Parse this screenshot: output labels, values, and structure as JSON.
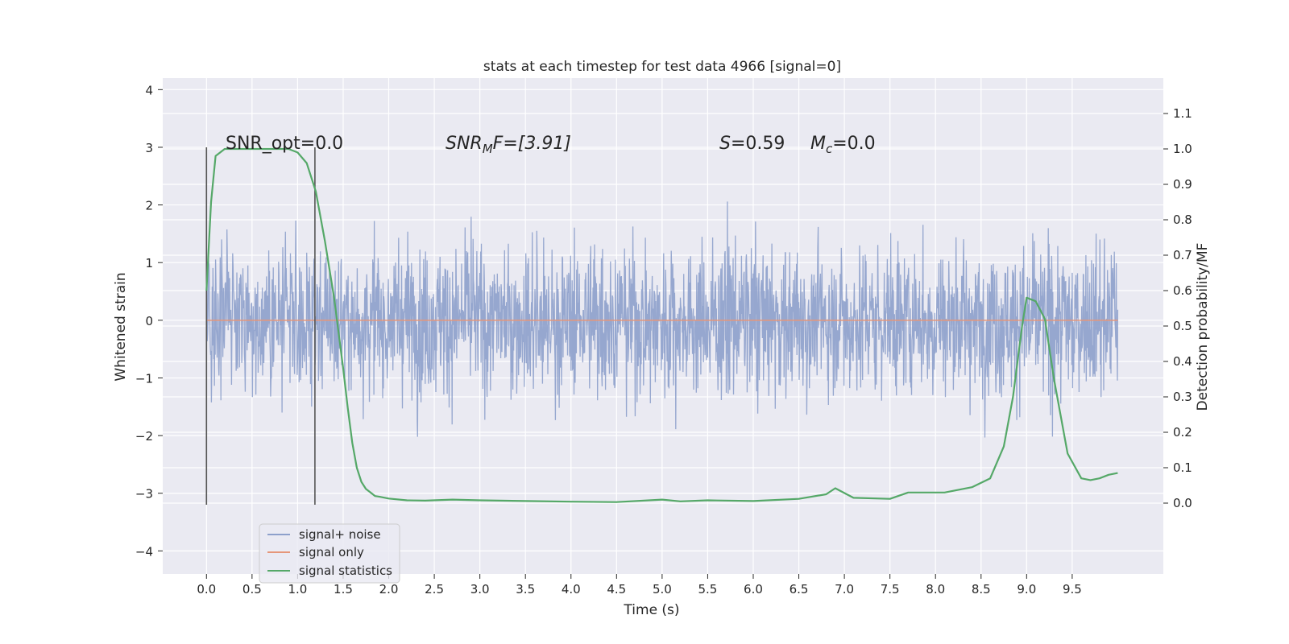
{
  "chart_data": {
    "type": "line",
    "title": "stats at each timestep for test data 4966 [signal=0]",
    "xlabel": "Time (s)",
    "ylabel": "Whitened strain",
    "y2label": "Detection probability/MF",
    "xlim": [
      -0.48,
      10.5
    ],
    "ylim": [
      -4.4,
      4.2
    ],
    "y2lim": [
      -0.2,
      1.2
    ],
    "x_ticks": [
      "0.0",
      "0.5",
      "1.0",
      "1.5",
      "2.0",
      "2.5",
      "3.0",
      "3.5",
      "4.0",
      "4.5",
      "5.0",
      "5.5",
      "6.0",
      "6.5",
      "7.0",
      "7.5",
      "8.0",
      "8.5",
      "9.0",
      "9.5"
    ],
    "y_ticks": [
      "−4",
      "−3",
      "−2",
      "−1",
      "0",
      "1",
      "2",
      "3",
      "4"
    ],
    "y2_ticks": [
      "0.0",
      "0.1",
      "0.2",
      "0.3",
      "0.4",
      "0.5",
      "0.6",
      "0.7",
      "0.8",
      "0.9",
      "1.0",
      "1.1"
    ],
    "grid": true,
    "legend_position": "lower-left",
    "legend": [
      "signal+ noise",
      "signal only",
      "signal statistics"
    ],
    "colors": {
      "signal_noise": "#8da0cb",
      "signal_only": "#e5967a",
      "statistics": "#55a868",
      "plot_bg": "#eaeaf2",
      "grid": "#ffffff",
      "vline": "#555555"
    },
    "annotations": {
      "snr_opt": "SNR_opt=0.0",
      "snr_mf_sym": "SNR",
      "snr_mf_sub": "M",
      "snr_mf_rest": "F=[3.91]",
      "s_sym": "S",
      "s_rest": "=0.59",
      "mc_sym": "M",
      "mc_sub": "c",
      "mc_rest": "=0.0"
    },
    "vlines_x": [
      0.0,
      1.19
    ],
    "vlines_y": [
      -3.2,
      3.0
    ],
    "noise": {
      "x_range": [
        0.0,
        10.0
      ],
      "envelope": 2.5,
      "typical": 1.2
    },
    "signal_only": {
      "x": [
        0.0,
        10.0
      ],
      "y": [
        0.0,
        0.0
      ]
    },
    "statistics": {
      "x": [
        0.0,
        0.05,
        0.1,
        0.15,
        0.2,
        0.3,
        0.5,
        0.7,
        0.9,
        1.0,
        1.1,
        1.2,
        1.3,
        1.4,
        1.5,
        1.55,
        1.6,
        1.65,
        1.7,
        1.75,
        1.8,
        1.85,
        1.9,
        2.0,
        2.2,
        2.4,
        2.7,
        3.0,
        3.5,
        4.0,
        4.5,
        5.0,
        5.2,
        5.5,
        6.0,
        6.5,
        6.8,
        6.9,
        7.1,
        7.5,
        7.7,
        7.8,
        8.1,
        8.4,
        8.6,
        8.75,
        8.85,
        8.95,
        9.0,
        9.1,
        9.2,
        9.3,
        9.45,
        9.6,
        9.7,
        9.8,
        9.9,
        10.0
      ],
      "y": [
        0.6,
        0.85,
        0.98,
        0.99,
        1.0,
        1.0,
        1.0,
        1.0,
        1.0,
        0.99,
        0.96,
        0.88,
        0.74,
        0.58,
        0.38,
        0.27,
        0.17,
        0.1,
        0.06,
        0.04,
        0.03,
        0.02,
        0.018,
        0.013,
        0.008,
        0.007,
        0.01,
        0.008,
        0.006,
        0.004,
        0.003,
        0.01,
        0.005,
        0.008,
        0.006,
        0.012,
        0.025,
        0.042,
        0.015,
        0.012,
        0.03,
        0.03,
        0.03,
        0.045,
        0.07,
        0.16,
        0.3,
        0.5,
        0.58,
        0.57,
        0.52,
        0.35,
        0.14,
        0.07,
        0.065,
        0.07,
        0.08,
        0.085
      ]
    }
  }
}
